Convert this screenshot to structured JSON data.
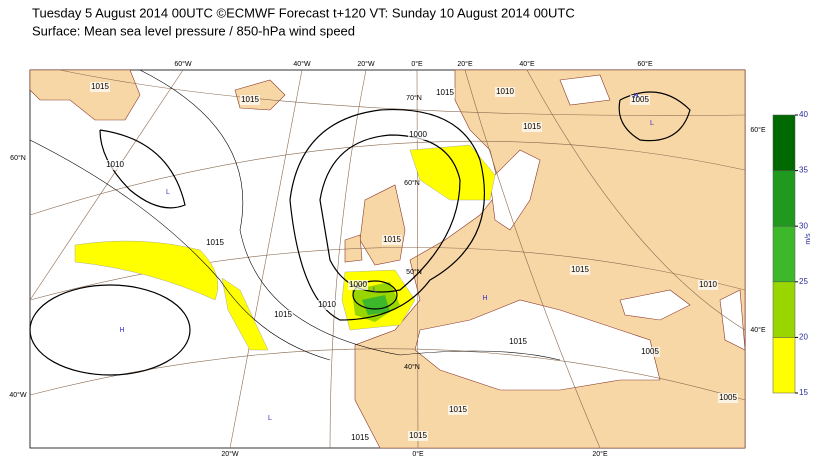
{
  "header": {
    "line1": "Tuesday 5 August 2014 00UTC ©ECMWF Forecast t+120 VT: Sunday 10 August 2014 00UTC",
    "line2": "Surface: Mean sea level pressure / 850-hPa wind speed"
  },
  "graticule_labels": [
    "60°W",
    "40°W",
    "20°W",
    "0°E",
    "20°E",
    "40°E",
    "60°E",
    "70°N",
    "60°N",
    "50°N",
    "40°N",
    "60°N",
    "40°W",
    "20°W",
    "0°E",
    "20°E",
    "60°E",
    "40°E"
  ],
  "isobar_labels": [
    "1015",
    "1015",
    "1010",
    "1015",
    "1015",
    "1010",
    "1015",
    "1000",
    "1010",
    "1015",
    "1005",
    "1015",
    "1015",
    "1010",
    "1015",
    "1005",
    "1015",
    "1015",
    "1015",
    "1005",
    "1000"
  ],
  "pressure_centers": [
    "H",
    "L",
    "H",
    "L",
    "H",
    "L",
    "L"
  ],
  "colorbar": {
    "ticks": [
      15,
      20,
      25,
      30,
      35,
      40
    ],
    "colors": [
      "#ffff00",
      "#99d600",
      "#3cb82a",
      "#1f9a1f",
      "#006a00"
    ],
    "unit": "m/s"
  }
}
